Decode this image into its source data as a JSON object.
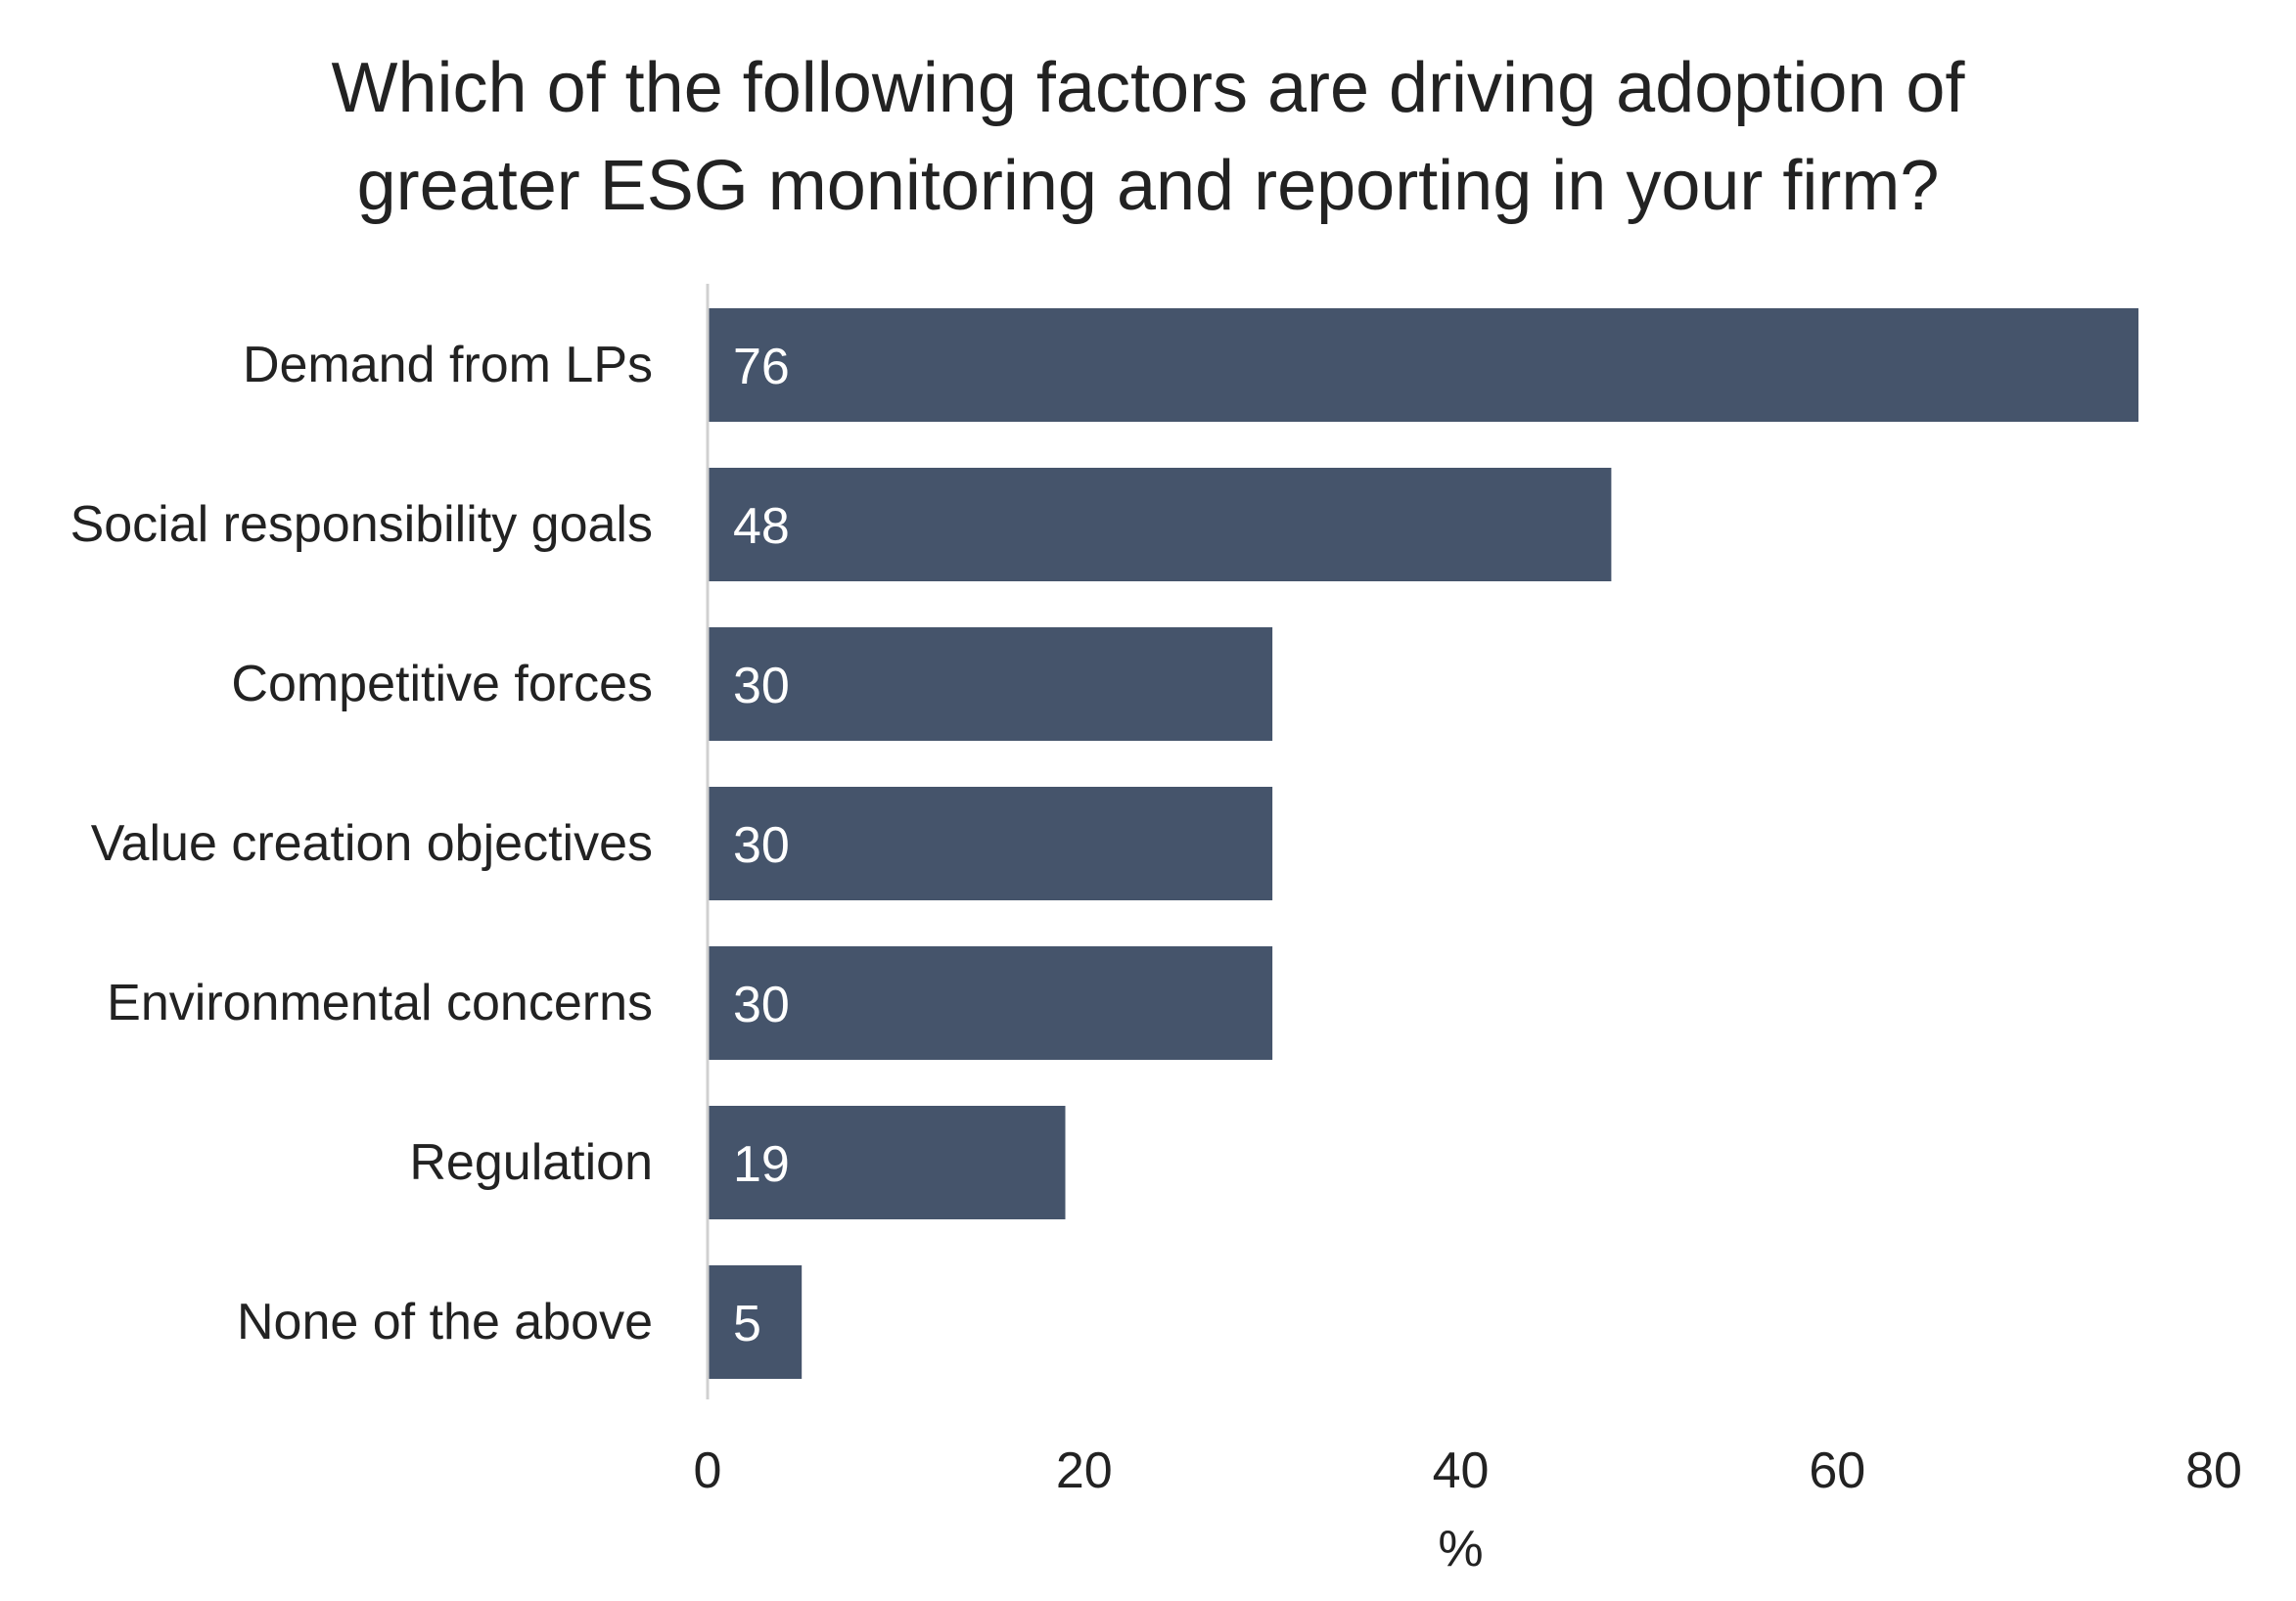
{
  "colors": {
    "bar": "#45546b",
    "axis_line": "#d0d0d0",
    "text": "#222222",
    "value_text": "#ffffff"
  },
  "chart_data": {
    "type": "bar",
    "orientation": "horizontal",
    "title": "Which of the following factors are driving adoption of greater ESG monitoring and reporting in your firm?",
    "title_lines": [
      "Which of the following factors are driving adoption of",
      "greater ESG monitoring and reporting in your firm?"
    ],
    "categories": [
      "Demand from LPs",
      "Social responsibility goals",
      "Competitive forces",
      "Value creation objectives",
      "Environmental concerns",
      "Regulation",
      "None of the above"
    ],
    "values": [
      76,
      48,
      30,
      30,
      30,
      19,
      5
    ],
    "data_labels": [
      "76",
      "48",
      "30",
      "30",
      "30",
      "19",
      "5"
    ],
    "xlabel": "%",
    "ylabel": "",
    "xlim": [
      0,
      80
    ],
    "xticks": [
      0,
      20,
      40,
      60,
      80
    ],
    "xtick_labels": [
      "0",
      "20",
      "40",
      "60",
      "80"
    ],
    "grid": false,
    "legend": "none"
  }
}
